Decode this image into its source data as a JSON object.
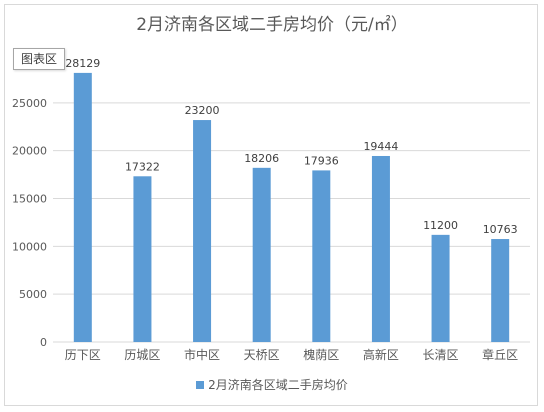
{
  "title": "2月济南各区域二手房均价（元/㎡）",
  "chart_area_tag": "图表区",
  "legend": {
    "label": "2月济南各区域二手房均价"
  },
  "colors": {
    "bar": "#5b9bd5",
    "grid": "#d9d9d9",
    "axis_text": "#595959"
  },
  "chart_data": {
    "type": "bar",
    "categories": [
      "历下区",
      "历城区",
      "市中区",
      "天桥区",
      "槐荫区",
      "高新区",
      "长清区",
      "章丘区"
    ],
    "series": [
      {
        "name": "2月济南各区域二手房均价",
        "values": [
          28129,
          17322,
          23200,
          18206,
          17936,
          19444,
          11200,
          10763
        ]
      }
    ],
    "ylim": [
      0,
      30000
    ],
    "yticks": [
      0,
      5000,
      10000,
      15000,
      20000,
      25000
    ],
    "grid": true,
    "legend_position": "bottom"
  }
}
